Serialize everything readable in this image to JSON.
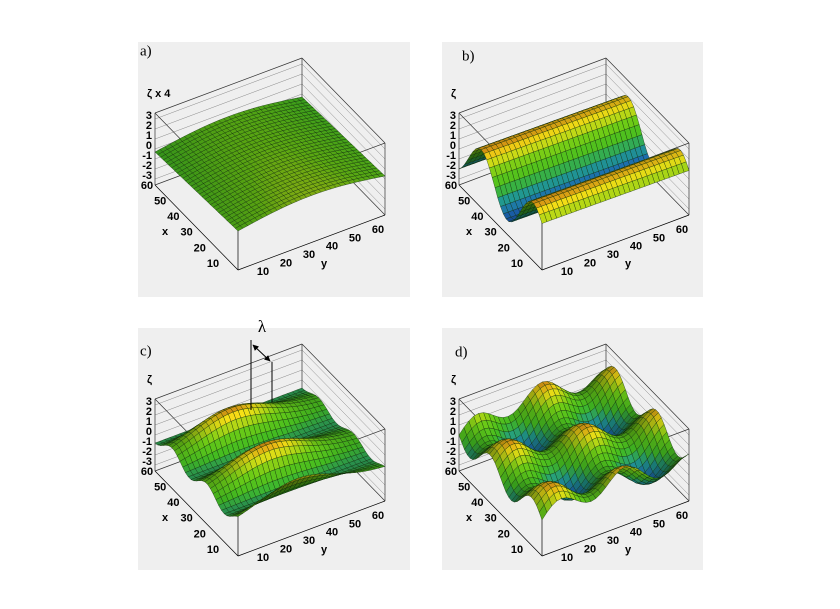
{
  "panels": [
    {
      "label": "a)",
      "z_label": "ζ x 4",
      "z_ticks": [
        "3",
        "2",
        "1",
        "0",
        "-1",
        "-2",
        "-3"
      ],
      "x_label": "x",
      "x_ticks": [
        "60",
        "50",
        "40",
        "30",
        "20",
        "10"
      ],
      "y_label": "y",
      "y_ticks": [
        "10",
        "20",
        "30",
        "40",
        "50",
        "60"
      ]
    },
    {
      "label": "b)",
      "z_label": "ζ",
      "z_ticks": [
        "3",
        "2",
        "1",
        "0",
        "-1",
        "-2",
        "-3"
      ],
      "x_label": "x",
      "x_ticks": [
        "60",
        "50",
        "40",
        "30",
        "20",
        "10"
      ],
      "y_label": "y",
      "y_ticks": [
        "10",
        "20",
        "30",
        "40",
        "50",
        "60"
      ]
    },
    {
      "label": "c)",
      "z_label": "ζ",
      "z_ticks": [
        "3",
        "2",
        "1",
        "0",
        "-1",
        "-2",
        "-3"
      ],
      "x_label": "x",
      "x_ticks": [
        "60",
        "50",
        "40",
        "30",
        "20",
        "10"
      ],
      "y_label": "y",
      "y_ticks": [
        "10",
        "20",
        "30",
        "40",
        "50",
        "60"
      ]
    },
    {
      "label": "d)",
      "z_label": "ζ",
      "z_ticks": [
        "3",
        "2",
        "1",
        "0",
        "-1",
        "-2",
        "-3"
      ],
      "x_label": "x",
      "x_ticks": [
        "60",
        "50",
        "40",
        "30",
        "20",
        "10"
      ],
      "y_label": "y",
      "y_ticks": [
        "10",
        "20",
        "30",
        "40",
        "50",
        "60"
      ]
    }
  ],
  "lambda": "λ"
}
